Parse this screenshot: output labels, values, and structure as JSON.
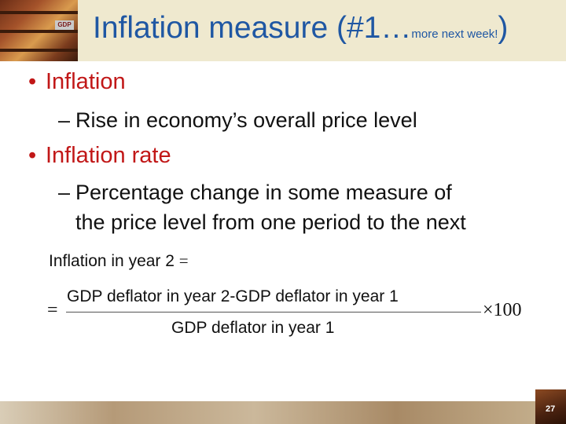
{
  "title": {
    "main": "Inflation measure (#1…",
    "small": "more next week!",
    "close": ")"
  },
  "corner_image": {
    "tag": "GDP"
  },
  "bullets": [
    {
      "text": "Inflation"
    },
    {
      "text": "Inflation rate"
    }
  ],
  "subs": [
    {
      "text": "Rise in economy’s overall price level"
    },
    {
      "line1": "Percentage change in some measure of",
      "line2": "the price level from one period to the next"
    }
  ],
  "formula": {
    "lhs": "Inflation in year 2",
    "equals": "=",
    "numerator": "GDP deflator in year 2-GDP deflator in year 1",
    "denominator": "GDP deflator in year 1",
    "multiplier": "×100"
  },
  "slide_number": "27",
  "colors": {
    "title": "#1f57a3",
    "bullet": "#c11717",
    "band": "#efe9cf"
  }
}
